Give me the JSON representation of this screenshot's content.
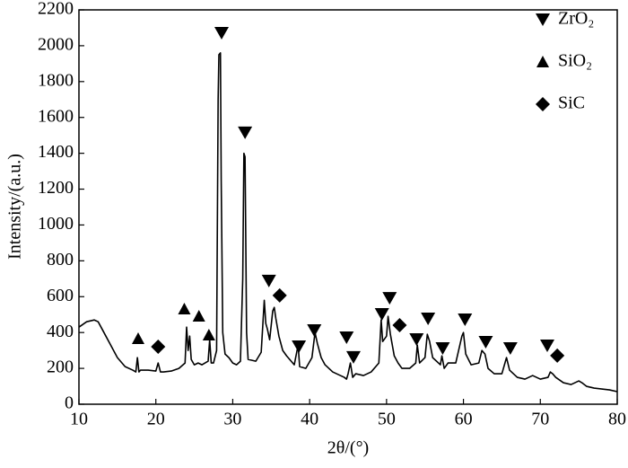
{
  "chart_data": {
    "type": "line",
    "xlabel": "2θ/(°)",
    "ylabel": "Intensity/(a.u.)",
    "color": "#000000",
    "xlim": [
      10,
      80
    ],
    "xticks": [
      10,
      20,
      30,
      40,
      50,
      60,
      70,
      80
    ],
    "ylim": [
      0,
      2200
    ],
    "yticks": [
      0,
      200,
      400,
      600,
      800,
      1000,
      1200,
      1400,
      1600,
      1800,
      2000,
      2200
    ],
    "x": [
      10,
      11,
      12,
      12.5,
      13,
      14,
      15,
      16,
      17,
      17.4,
      17.6,
      17.8,
      18,
      19,
      20,
      20.3,
      20.6,
      21,
      22,
      23,
      23.8,
      24,
      24.2,
      24.4,
      24.6,
      25,
      25.5,
      26,
      26.8,
      27,
      27.2,
      27.5,
      27.9,
      28.1,
      28.2,
      28.4,
      28.5,
      28.7,
      29,
      29.5,
      30,
      30.5,
      31,
      31.3,
      31.45,
      31.6,
      31.8,
      32,
      33,
      33.7,
      34.1,
      34.3,
      34.5,
      34.8,
      35.2,
      35.4,
      35.6,
      36,
      36.5,
      37,
      38,
      38.5,
      38.7,
      39.5,
      40.3,
      40.7,
      41,
      41.5,
      42,
      43,
      44,
      44.5,
      44.8,
      45,
      45.3,
      45.6,
      46,
      47,
      48,
      49,
      49.3,
      49.5,
      50,
      50.2,
      50.5,
      51,
      51.5,
      52,
      53,
      53.8,
      54,
      54.3,
      55,
      55.3,
      55.6,
      56,
      57,
      57.2,
      57.5,
      58,
      59,
      59.8,
      60,
      60.3,
      61,
      62,
      62.4,
      62.8,
      63.2,
      64,
      65,
      65.6,
      66,
      67,
      68,
      69,
      70,
      71,
      71.3,
      71.6,
      72,
      73,
      74,
      75,
      75.4,
      76,
      77,
      78,
      79,
      80
    ],
    "values": [
      430,
      460,
      470,
      460,
      420,
      340,
      260,
      210,
      190,
      180,
      260,
      180,
      190,
      190,
      185,
      230,
      180,
      180,
      185,
      200,
      230,
      430,
      300,
      380,
      250,
      220,
      230,
      220,
      240,
      360,
      230,
      230,
      300,
      1700,
      1950,
      1960,
      1250,
      400,
      280,
      260,
      230,
      220,
      240,
      700,
      1400,
      1380,
      400,
      250,
      240,
      290,
      580,
      450,
      420,
      360,
      520,
      540,
      480,
      380,
      300,
      270,
      220,
      330,
      210,
      200,
      260,
      400,
      340,
      260,
      220,
      180,
      160,
      150,
      140,
      170,
      230,
      150,
      170,
      160,
      180,
      230,
      470,
      350,
      380,
      490,
      390,
      270,
      230,
      200,
      200,
      230,
      330,
      230,
      260,
      390,
      350,
      260,
      220,
      270,
      200,
      230,
      230,
      380,
      400,
      280,
      220,
      230,
      300,
      280,
      200,
      170,
      170,
      260,
      190,
      150,
      140,
      160,
      140,
      150,
      180,
      170,
      150,
      120,
      110,
      130,
      120,
      100,
      90,
      85,
      80,
      70
    ],
    "markers": [
      {
        "name": "ZrO₂",
        "shape": "triangle-down",
        "x": [
          28.55,
          31.6,
          34.7,
          38.6,
          40.6,
          44.8,
          45.7,
          49.4,
          50.4,
          53.9,
          55.4,
          57.3,
          60.2,
          62.9,
          66.1,
          70.9
        ],
        "values": [
          2070,
          1514,
          687,
          321,
          411,
          371,
          261,
          501,
          591,
          361,
          476,
          311,
          471,
          346,
          311,
          326
        ]
      },
      {
        "name": "SiO₂",
        "shape": "triangle-up",
        "x": [
          17.7,
          23.7,
          25.6,
          26.9
        ],
        "values": [
          366,
          531,
          491,
          386
        ]
      },
      {
        "name": "SiC",
        "shape": "diamond",
        "x": [
          20.3,
          36.1,
          51.7,
          72.2
        ],
        "values": [
          321,
          607,
          441,
          271
        ]
      }
    ]
  }
}
